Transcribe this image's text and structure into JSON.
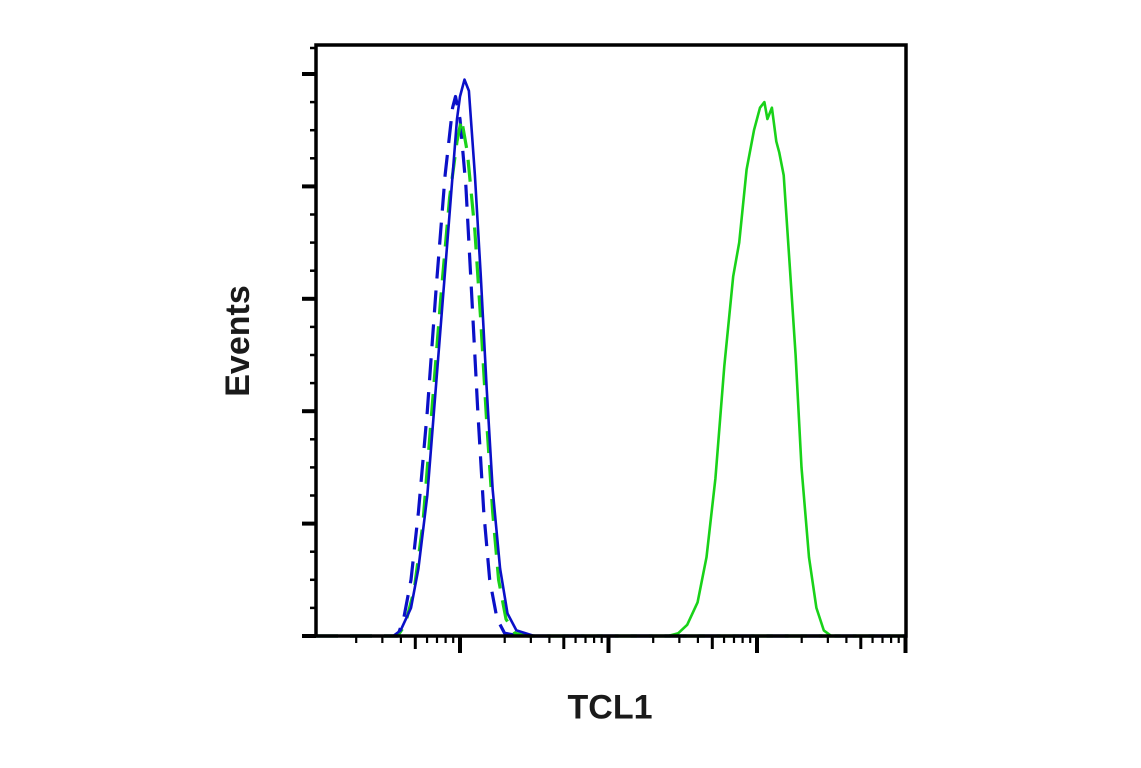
{
  "chart_data": {
    "type": "line",
    "subtype": "flow-cytometry-histogram-overlay",
    "title": "",
    "xlabel": "TCL1",
    "ylabel": "Events",
    "x_scale": "log",
    "x_tick_labels": [],
    "y_tick_labels": [],
    "x_axis": {
      "decades_visible": 4,
      "note": "Log axis without numeric labels; decade major ticks, minor ticks at 2-9 (longer tick at 5).",
      "range_decades": [
        -0.97,
        3.0
      ]
    },
    "y_axis": {
      "range_percent": [
        0,
        105
      ],
      "major_ticks_percent": [
        0,
        20,
        40,
        60,
        80,
        100
      ],
      "minor_ticks_per_major": 3
    },
    "grid": false,
    "legend": null,
    "colors": {
      "blue": "#0a10c8",
      "green": "#19d219",
      "axis": "#000000",
      "label": "#1a1a1a"
    },
    "series": [
      {
        "name": "blue-solid",
        "color": "#0a10c8",
        "dash": "solid",
        "peak_decade": 0.03,
        "peak_percent": 99,
        "points": [
          [
            -0.97,
            0
          ],
          [
            -0.45,
            0
          ],
          [
            -0.4,
            1
          ],
          [
            -0.33,
            5
          ],
          [
            -0.28,
            12
          ],
          [
            -0.22,
            25
          ],
          [
            -0.16,
            45
          ],
          [
            -0.1,
            65
          ],
          [
            -0.05,
            82
          ],
          [
            -0.02,
            92
          ],
          [
            0.0,
            96
          ],
          [
            0.03,
            99
          ],
          [
            0.06,
            97
          ],
          [
            0.1,
            82
          ],
          [
            0.14,
            64
          ],
          [
            0.18,
            44
          ],
          [
            0.22,
            26
          ],
          [
            0.27,
            12
          ],
          [
            0.32,
            4
          ],
          [
            0.38,
            1
          ],
          [
            0.5,
            0
          ],
          [
            0.65,
            0
          ],
          [
            3.0,
            0
          ]
        ]
      },
      {
        "name": "blue-dashed",
        "color": "#0a10c8",
        "dash": "dashed",
        "peak_decade": -0.03,
        "peak_percent": 96,
        "points": [
          [
            -0.97,
            0
          ],
          [
            -0.42,
            0
          ],
          [
            -0.38,
            3
          ],
          [
            -0.33,
            10
          ],
          [
            -0.28,
            22
          ],
          [
            -0.22,
            40
          ],
          [
            -0.16,
            62
          ],
          [
            -0.1,
            82
          ],
          [
            -0.05,
            94
          ],
          [
            -0.03,
            96
          ],
          [
            0.0,
            92
          ],
          [
            0.04,
            80
          ],
          [
            0.08,
            60
          ],
          [
            0.12,
            40
          ],
          [
            0.16,
            22
          ],
          [
            0.2,
            10
          ],
          [
            0.25,
            3
          ],
          [
            0.3,
            0.5
          ],
          [
            0.4,
            0
          ],
          [
            3.0,
            0
          ]
        ]
      },
      {
        "name": "green-dashed",
        "color": "#19d219",
        "dash": "dashed",
        "peak_decade": 0.01,
        "peak_percent": 92,
        "points": [
          [
            -0.97,
            0
          ],
          [
            -0.42,
            0
          ],
          [
            -0.37,
            2
          ],
          [
            -0.31,
            8
          ],
          [
            -0.25,
            20
          ],
          [
            -0.19,
            40
          ],
          [
            -0.13,
            60
          ],
          [
            -0.07,
            78
          ],
          [
            -0.02,
            88
          ],
          [
            0.01,
            92
          ],
          [
            0.05,
            86
          ],
          [
            0.1,
            72
          ],
          [
            0.14,
            56
          ],
          [
            0.18,
            38
          ],
          [
            0.22,
            22
          ],
          [
            0.26,
            10
          ],
          [
            0.31,
            3
          ],
          [
            0.37,
            0.5
          ],
          [
            0.45,
            0
          ],
          [
            3.0,
            0
          ]
        ]
      },
      {
        "name": "green-solid",
        "color": "#19d219",
        "dash": "solid",
        "peak_decade": 2.1,
        "peak_percent": 95,
        "points": [
          [
            -0.97,
            0
          ],
          [
            1.4,
            0
          ],
          [
            1.47,
            0.5
          ],
          [
            1.53,
            2
          ],
          [
            1.6,
            6
          ],
          [
            1.66,
            14
          ],
          [
            1.72,
            28
          ],
          [
            1.78,
            48
          ],
          [
            1.84,
            64
          ],
          [
            1.88,
            70
          ],
          [
            1.93,
            83
          ],
          [
            1.98,
            90
          ],
          [
            2.02,
            94
          ],
          [
            2.05,
            95
          ],
          [
            2.07,
            92
          ],
          [
            2.1,
            94
          ],
          [
            2.13,
            88
          ],
          [
            2.15,
            86
          ],
          [
            2.18,
            82
          ],
          [
            2.22,
            66
          ],
          [
            2.26,
            50
          ],
          [
            2.3,
            30
          ],
          [
            2.35,
            14
          ],
          [
            2.4,
            5
          ],
          [
            2.45,
            1
          ],
          [
            2.5,
            0
          ],
          [
            3.0,
            0
          ]
        ]
      }
    ]
  },
  "labels": {
    "x_axis": "TCL1",
    "y_axis": "Events"
  }
}
